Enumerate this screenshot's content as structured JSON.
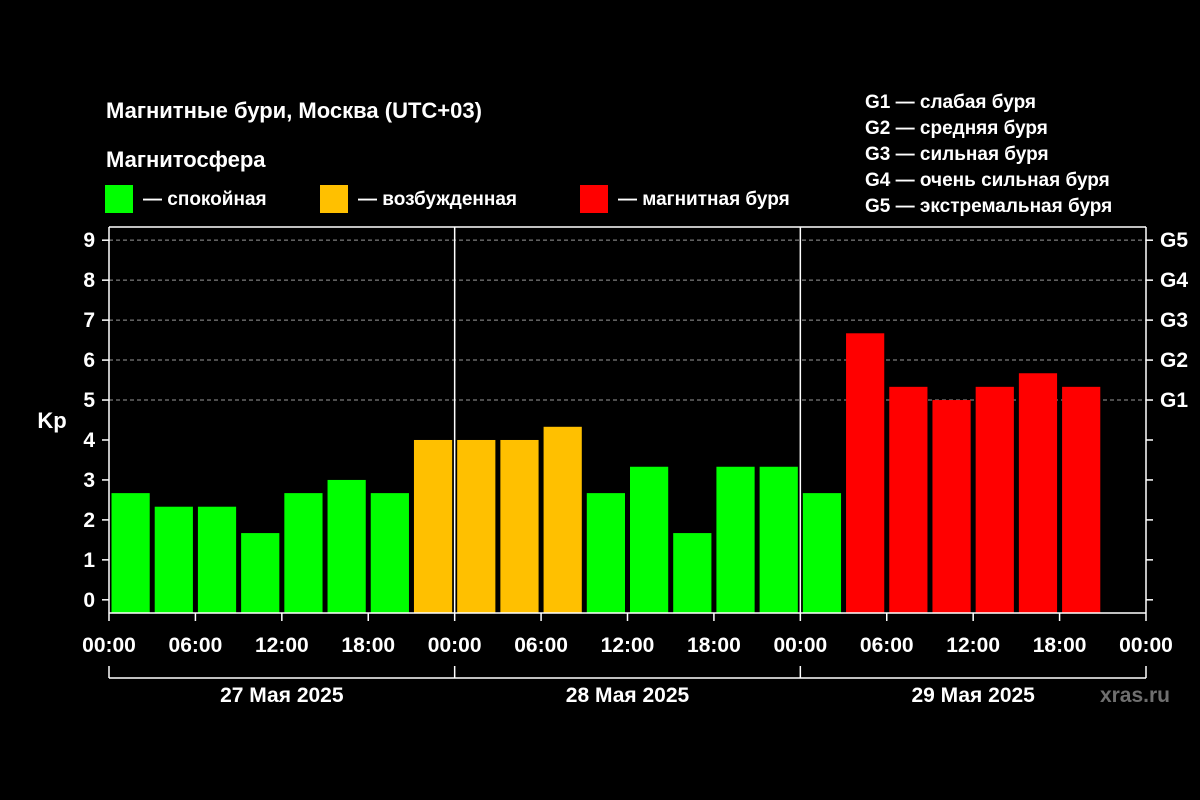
{
  "colors": {
    "calm": "#00ff00",
    "excited": "#ffc000",
    "storm": "#ff0000",
    "background": "#000000",
    "axis": "#ffffff",
    "grid": "#9a9a9a",
    "watermark": "#6f6f6f"
  },
  "legend": {
    "heading": "Магнитосфера",
    "items": [
      {
        "key": "calm",
        "label": "— спокойная"
      },
      {
        "key": "excited",
        "label": "— возбужденная"
      },
      {
        "key": "storm",
        "label": "— магнитная буря"
      }
    ]
  },
  "gscale": [
    "G1 — слабая буря",
    "G2 — средняя буря",
    "G3 — сильная буря",
    "G4 — очень сильная буря",
    "G5 — экстремальная буря"
  ],
  "watermark": "xras.ru",
  "chart_data": {
    "type": "bar",
    "title": "Магнитные бури, Москва (UTC+03)",
    "ylabel": "Kp",
    "ylim": [
      -0.33,
      9.33
    ],
    "yticks": [
      0,
      1,
      2,
      3,
      4,
      5,
      6,
      7,
      8,
      9
    ],
    "right_ticks": [
      {
        "value": 5,
        "label": "G1"
      },
      {
        "value": 6,
        "label": "G2"
      },
      {
        "value": 7,
        "label": "G3"
      },
      {
        "value": 8,
        "label": "G4"
      },
      {
        "value": 9,
        "label": "G5"
      }
    ],
    "grid_lines": [
      5,
      6,
      7,
      8,
      9
    ],
    "x_hours_total": 72,
    "xticks": [
      "00:00",
      "06:00",
      "12:00",
      "18:00",
      "00:00",
      "06:00",
      "12:00",
      "18:00",
      "00:00",
      "06:00",
      "12:00",
      "18:00",
      "00:00"
    ],
    "days": [
      "27 Мая 2025",
      "28 Мая 2025",
      "29 Мая 2025"
    ],
    "bar_interval_hours": 3,
    "values": [
      2.67,
      2.33,
      2.33,
      1.67,
      2.67,
      3.0,
      2.67,
      4.0,
      4.0,
      4.0,
      4.33,
      2.67,
      3.33,
      1.67,
      3.33,
      3.33,
      2.67,
      6.67,
      5.33,
      5.0,
      5.33,
      5.67,
      5.33
    ],
    "categories": [
      "calm",
      "calm",
      "calm",
      "calm",
      "calm",
      "calm",
      "calm",
      "excited",
      "excited",
      "excited",
      "excited",
      "calm",
      "calm",
      "calm",
      "calm",
      "calm",
      "calm",
      "storm",
      "storm",
      "storm",
      "storm",
      "storm",
      "storm"
    ]
  }
}
